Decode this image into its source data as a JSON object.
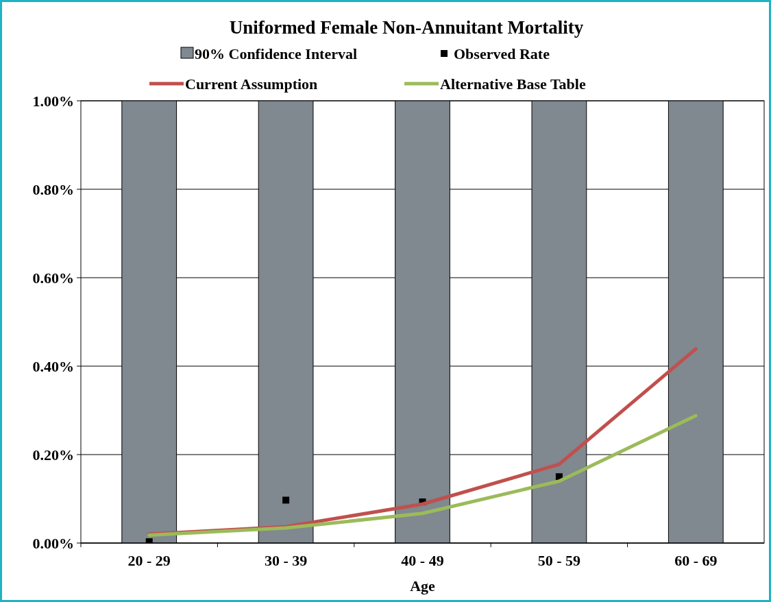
{
  "chart_data": {
    "type": "bar",
    "title": "Uniformed Female Non-Annuitant Mortality",
    "xlabel": "Age",
    "categories": [
      "20 - 29",
      "30 - 39",
      "40 - 49",
      "50 - 59",
      "60 - 69"
    ],
    "series": [
      {
        "name": "90% Confidence Interval",
        "color": "#808890",
        "base": [
          0,
          0,
          0,
          0,
          0
        ],
        "values": [
          1,
          1,
          1,
          1,
          1
        ]
      },
      {
        "name": "Observed Rate",
        "type": "scatter",
        "marker": "square",
        "color": "#000000",
        "values": [
          0.003,
          0.097,
          0.093,
          0.15,
          null
        ]
      },
      {
        "name": "Current Assumption",
        "type": "line",
        "marker": "none",
        "color": "#c0504d",
        "values": [
          0.02,
          0.037,
          0.088,
          0.178,
          0.439
        ]
      },
      {
        "name": "Alternative Base Table",
        "type": "line",
        "marker": "none",
        "color": "#9bbb59",
        "values": [
          0.018,
          0.034,
          0.067,
          0.14,
          0.288
        ]
      }
    ],
    "ylim": [
      0,
      1
    ],
    "yticks": [
      {
        "value": 0,
        "label": "0.00%"
      },
      {
        "value": 0.2,
        "label": "0.20%"
      },
      {
        "value": 0.4,
        "label": "0.40%"
      },
      {
        "value": 0.6,
        "label": "0.60%"
      },
      {
        "value": 0.8,
        "label": "0.80%"
      },
      {
        "value": 1,
        "label": "1.00%"
      }
    ],
    "grid": "y",
    "legend": "top"
  }
}
